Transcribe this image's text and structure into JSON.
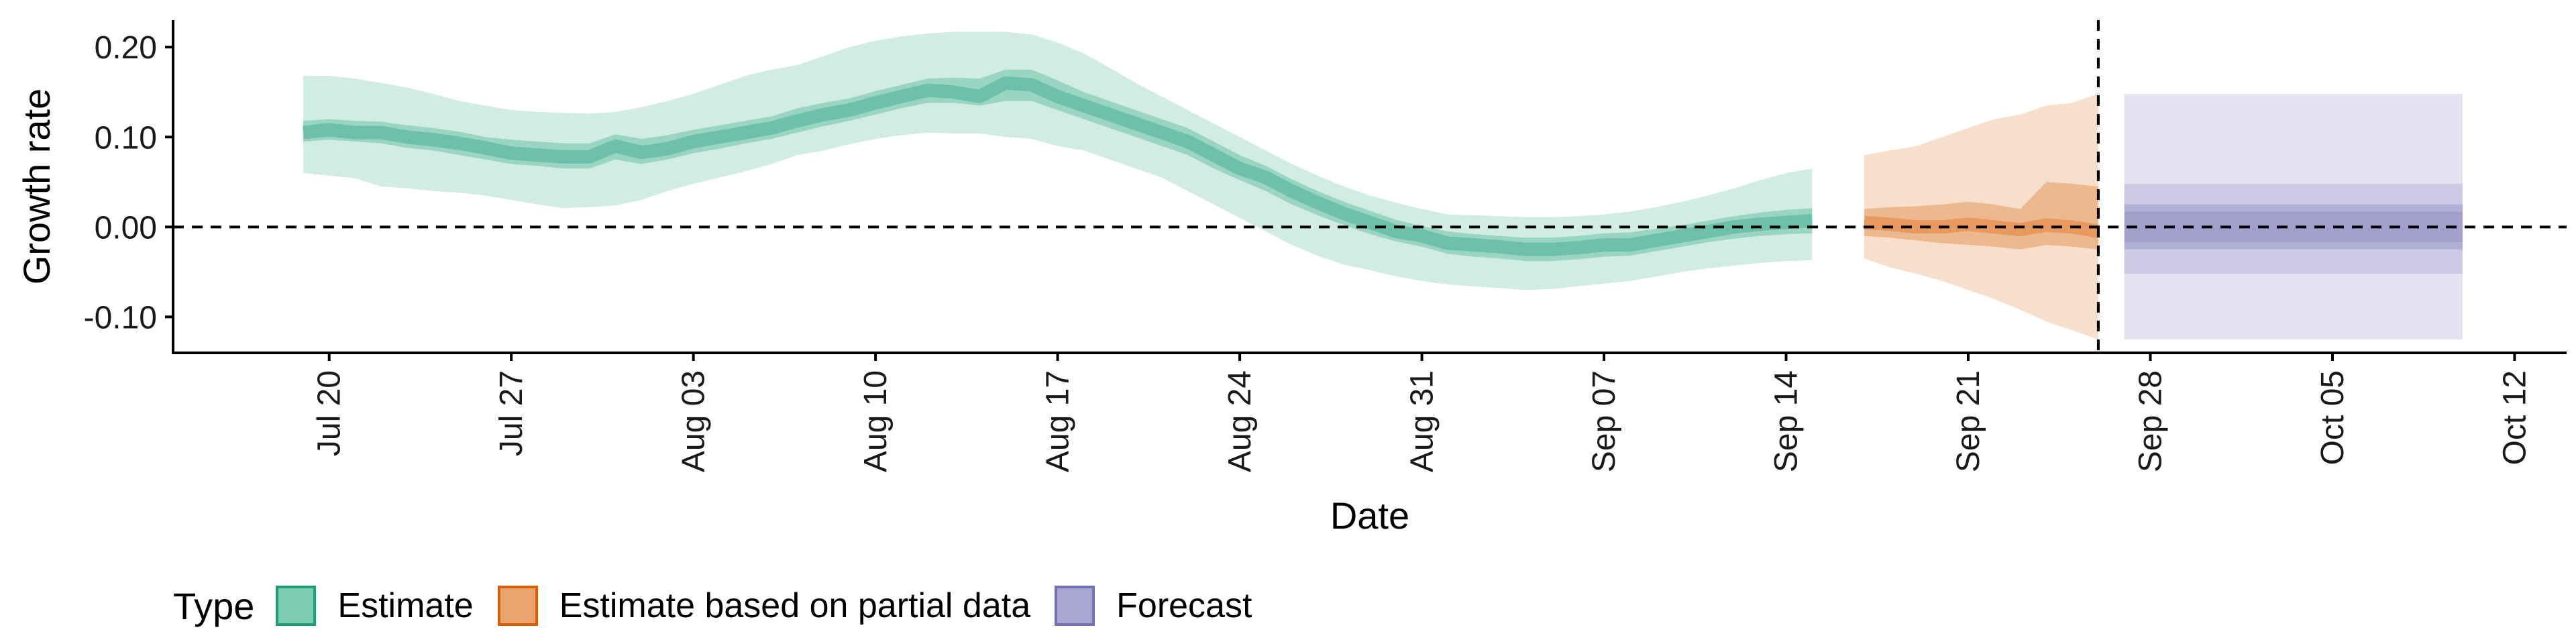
{
  "chart_data": {
    "type": "area",
    "xlabel": "Date",
    "ylabel": "Growth rate",
    "x_ticks": [
      "Jul 20",
      "Jul 27",
      "Aug 03",
      "Aug 10",
      "Aug 17",
      "Aug 24",
      "Aug 31",
      "Sep 07",
      "Sep 14",
      "Sep 21",
      "Sep 28",
      "Oct 05",
      "Oct 12"
    ],
    "y_ticks": [
      "0.20",
      "0.10",
      "0.00",
      "-0.10"
    ],
    "ylim": [
      -0.14,
      0.23
    ],
    "xlim": [
      "2020-07-14",
      "2020-10-14"
    ],
    "grid": false,
    "reference_lines": [
      {
        "orientation": "horizontal",
        "y": 0.0,
        "style": "dashed"
      },
      {
        "orientation": "vertical",
        "x": "2020-09-26",
        "style": "dashed"
      }
    ],
    "legend": {
      "title": "Type",
      "position": "bottom",
      "entries": [
        {
          "label": "Estimate",
          "fill": "#7fcdb0",
          "border": "#1b9e77"
        },
        {
          "label": "Estimate based on partial data",
          "fill": "#eba46e",
          "border": "#d95f02"
        },
        {
          "label": "Forecast",
          "fill": "#aaa6d3",
          "border": "#7570b3"
        }
      ]
    },
    "series": [
      {
        "name": "Estimate",
        "color": "#1b9e77",
        "x": [
          "2020-07-19",
          "2020-07-20",
          "2020-07-21",
          "2020-07-22",
          "2020-07-23",
          "2020-07-24",
          "2020-07-25",
          "2020-07-26",
          "2020-07-27",
          "2020-07-28",
          "2020-07-29",
          "2020-07-30",
          "2020-07-31",
          "2020-08-01",
          "2020-08-02",
          "2020-08-03",
          "2020-08-04",
          "2020-08-05",
          "2020-08-06",
          "2020-08-07",
          "2020-08-08",
          "2020-08-09",
          "2020-08-10",
          "2020-08-11",
          "2020-08-12",
          "2020-08-13",
          "2020-08-14",
          "2020-08-15",
          "2020-08-16",
          "2020-08-17",
          "2020-08-18",
          "2020-08-19",
          "2020-08-20",
          "2020-08-21",
          "2020-08-22",
          "2020-08-23",
          "2020-08-24",
          "2020-08-25",
          "2020-08-26",
          "2020-08-27",
          "2020-08-28",
          "2020-08-29",
          "2020-08-30",
          "2020-08-31",
          "2020-09-01",
          "2020-09-02",
          "2020-09-03",
          "2020-09-04",
          "2020-09-05",
          "2020-09-06",
          "2020-09-07",
          "2020-09-08",
          "2020-09-09",
          "2020-09-10",
          "2020-09-11",
          "2020-09-12",
          "2020-09-13",
          "2020-09-14",
          "2020-09-15"
        ],
        "median": [
          0.105,
          0.108,
          0.105,
          0.105,
          0.1,
          0.097,
          0.093,
          0.088,
          0.082,
          0.08,
          0.078,
          0.078,
          0.09,
          0.083,
          0.087,
          0.095,
          0.1,
          0.105,
          0.11,
          0.118,
          0.125,
          0.13,
          0.138,
          0.145,
          0.152,
          0.15,
          0.145,
          0.16,
          0.158,
          0.145,
          0.135,
          0.125,
          0.115,
          0.105,
          0.095,
          0.08,
          0.065,
          0.055,
          0.04,
          0.027,
          0.015,
          0.005,
          -0.005,
          -0.01,
          -0.018,
          -0.02,
          -0.022,
          -0.025,
          -0.025,
          -0.023,
          -0.02,
          -0.02,
          -0.015,
          -0.01,
          -0.005,
          0.0,
          0.003,
          0.005,
          0.007
        ],
        "q25": [
          0.095,
          0.097,
          0.095,
          0.093,
          0.088,
          0.085,
          0.08,
          0.075,
          0.07,
          0.068,
          0.065,
          0.065,
          0.075,
          0.07,
          0.075,
          0.082,
          0.087,
          0.093,
          0.098,
          0.105,
          0.112,
          0.118,
          0.125,
          0.132,
          0.138,
          0.138,
          0.135,
          0.14,
          0.14,
          0.13,
          0.12,
          0.11,
          0.1,
          0.09,
          0.08,
          0.065,
          0.052,
          0.04,
          0.025,
          0.013,
          0.002,
          -0.008,
          -0.016,
          -0.022,
          -0.03,
          -0.033,
          -0.035,
          -0.038,
          -0.038,
          -0.036,
          -0.033,
          -0.032,
          -0.027,
          -0.022,
          -0.017,
          -0.013,
          -0.01,
          -0.008,
          -0.007
        ],
        "q75": [
          0.118,
          0.12,
          0.118,
          0.117,
          0.113,
          0.11,
          0.106,
          0.1,
          0.097,
          0.095,
          0.093,
          0.093,
          0.103,
          0.098,
          0.102,
          0.108,
          0.113,
          0.118,
          0.123,
          0.132,
          0.138,
          0.143,
          0.151,
          0.158,
          0.165,
          0.166,
          0.165,
          0.175,
          0.175,
          0.163,
          0.15,
          0.14,
          0.13,
          0.12,
          0.11,
          0.095,
          0.08,
          0.068,
          0.053,
          0.04,
          0.028,
          0.018,
          0.008,
          0.001,
          -0.005,
          -0.008,
          -0.01,
          -0.012,
          -0.012,
          -0.01,
          -0.007,
          -0.006,
          -0.002,
          0.002,
          0.007,
          0.012,
          0.016,
          0.019,
          0.021
        ],
        "q05": [
          0.06,
          0.057,
          0.054,
          0.045,
          0.043,
          0.04,
          0.038,
          0.035,
          0.03,
          0.025,
          0.021,
          0.022,
          0.024,
          0.03,
          0.04,
          0.048,
          0.055,
          0.062,
          0.07,
          0.08,
          0.085,
          0.092,
          0.098,
          0.102,
          0.105,
          0.104,
          0.104,
          0.1,
          0.098,
          0.09,
          0.085,
          0.075,
          0.065,
          0.055,
          0.04,
          0.025,
          0.01,
          -0.005,
          -0.02,
          -0.032,
          -0.042,
          -0.048,
          -0.055,
          -0.06,
          -0.064,
          -0.066,
          -0.068,
          -0.07,
          -0.069,
          -0.066,
          -0.063,
          -0.06,
          -0.055,
          -0.05,
          -0.046,
          -0.043,
          -0.04,
          -0.038,
          -0.037
        ],
        "q95": [
          0.168,
          0.168,
          0.165,
          0.16,
          0.155,
          0.148,
          0.14,
          0.135,
          0.13,
          0.128,
          0.127,
          0.126,
          0.128,
          0.133,
          0.14,
          0.148,
          0.158,
          0.168,
          0.175,
          0.18,
          0.19,
          0.2,
          0.207,
          0.212,
          0.215,
          0.217,
          0.217,
          0.217,
          0.214,
          0.205,
          0.193,
          0.177,
          0.16,
          0.145,
          0.13,
          0.115,
          0.1,
          0.085,
          0.07,
          0.057,
          0.045,
          0.035,
          0.027,
          0.02,
          0.014,
          0.013,
          0.012,
          0.011,
          0.011,
          0.012,
          0.014,
          0.017,
          0.022,
          0.028,
          0.035,
          0.043,
          0.052,
          0.06,
          0.065
        ]
      },
      {
        "name": "Estimate based on partial data",
        "color": "#d95f02",
        "x": [
          "2020-09-17",
          "2020-09-18",
          "2020-09-19",
          "2020-09-20",
          "2020-09-21",
          "2020-09-22",
          "2020-09-23",
          "2020-09-24",
          "2020-09-25",
          "2020-09-26"
        ],
        "median": [
          0.005,
          0.003,
          0.0,
          0.0,
          0.003,
          0.0,
          -0.003,
          0.002,
          0.0,
          -0.005
        ],
        "q25": [
          -0.01,
          -0.012,
          -0.015,
          -0.018,
          -0.02,
          -0.022,
          -0.025,
          -0.02,
          -0.022,
          -0.025
        ],
        "q75": [
          0.02,
          0.022,
          0.023,
          0.025,
          0.028,
          0.025,
          0.02,
          0.05,
          0.048,
          0.045
        ],
        "q05": [
          -0.035,
          -0.045,
          -0.052,
          -0.06,
          -0.07,
          -0.08,
          -0.092,
          -0.105,
          -0.115,
          -0.125
        ],
        "q95": [
          0.08,
          0.085,
          0.09,
          0.1,
          0.11,
          0.12,
          0.125,
          0.135,
          0.138,
          0.148
        ]
      },
      {
        "name": "Forecast",
        "color": "#7570b3",
        "x": [
          "2020-09-27",
          "2020-10-10"
        ],
        "median": [
          0.0,
          0.0
        ],
        "q25": [
          -0.025,
          -0.025
        ],
        "q75": [
          0.025,
          0.025
        ],
        "q05": [
          -0.052,
          -0.052
        ],
        "q95": [
          0.048,
          0.048
        ],
        "q01": [
          -0.125,
          -0.125
        ],
        "q99": [
          0.148,
          0.148
        ]
      }
    ]
  }
}
